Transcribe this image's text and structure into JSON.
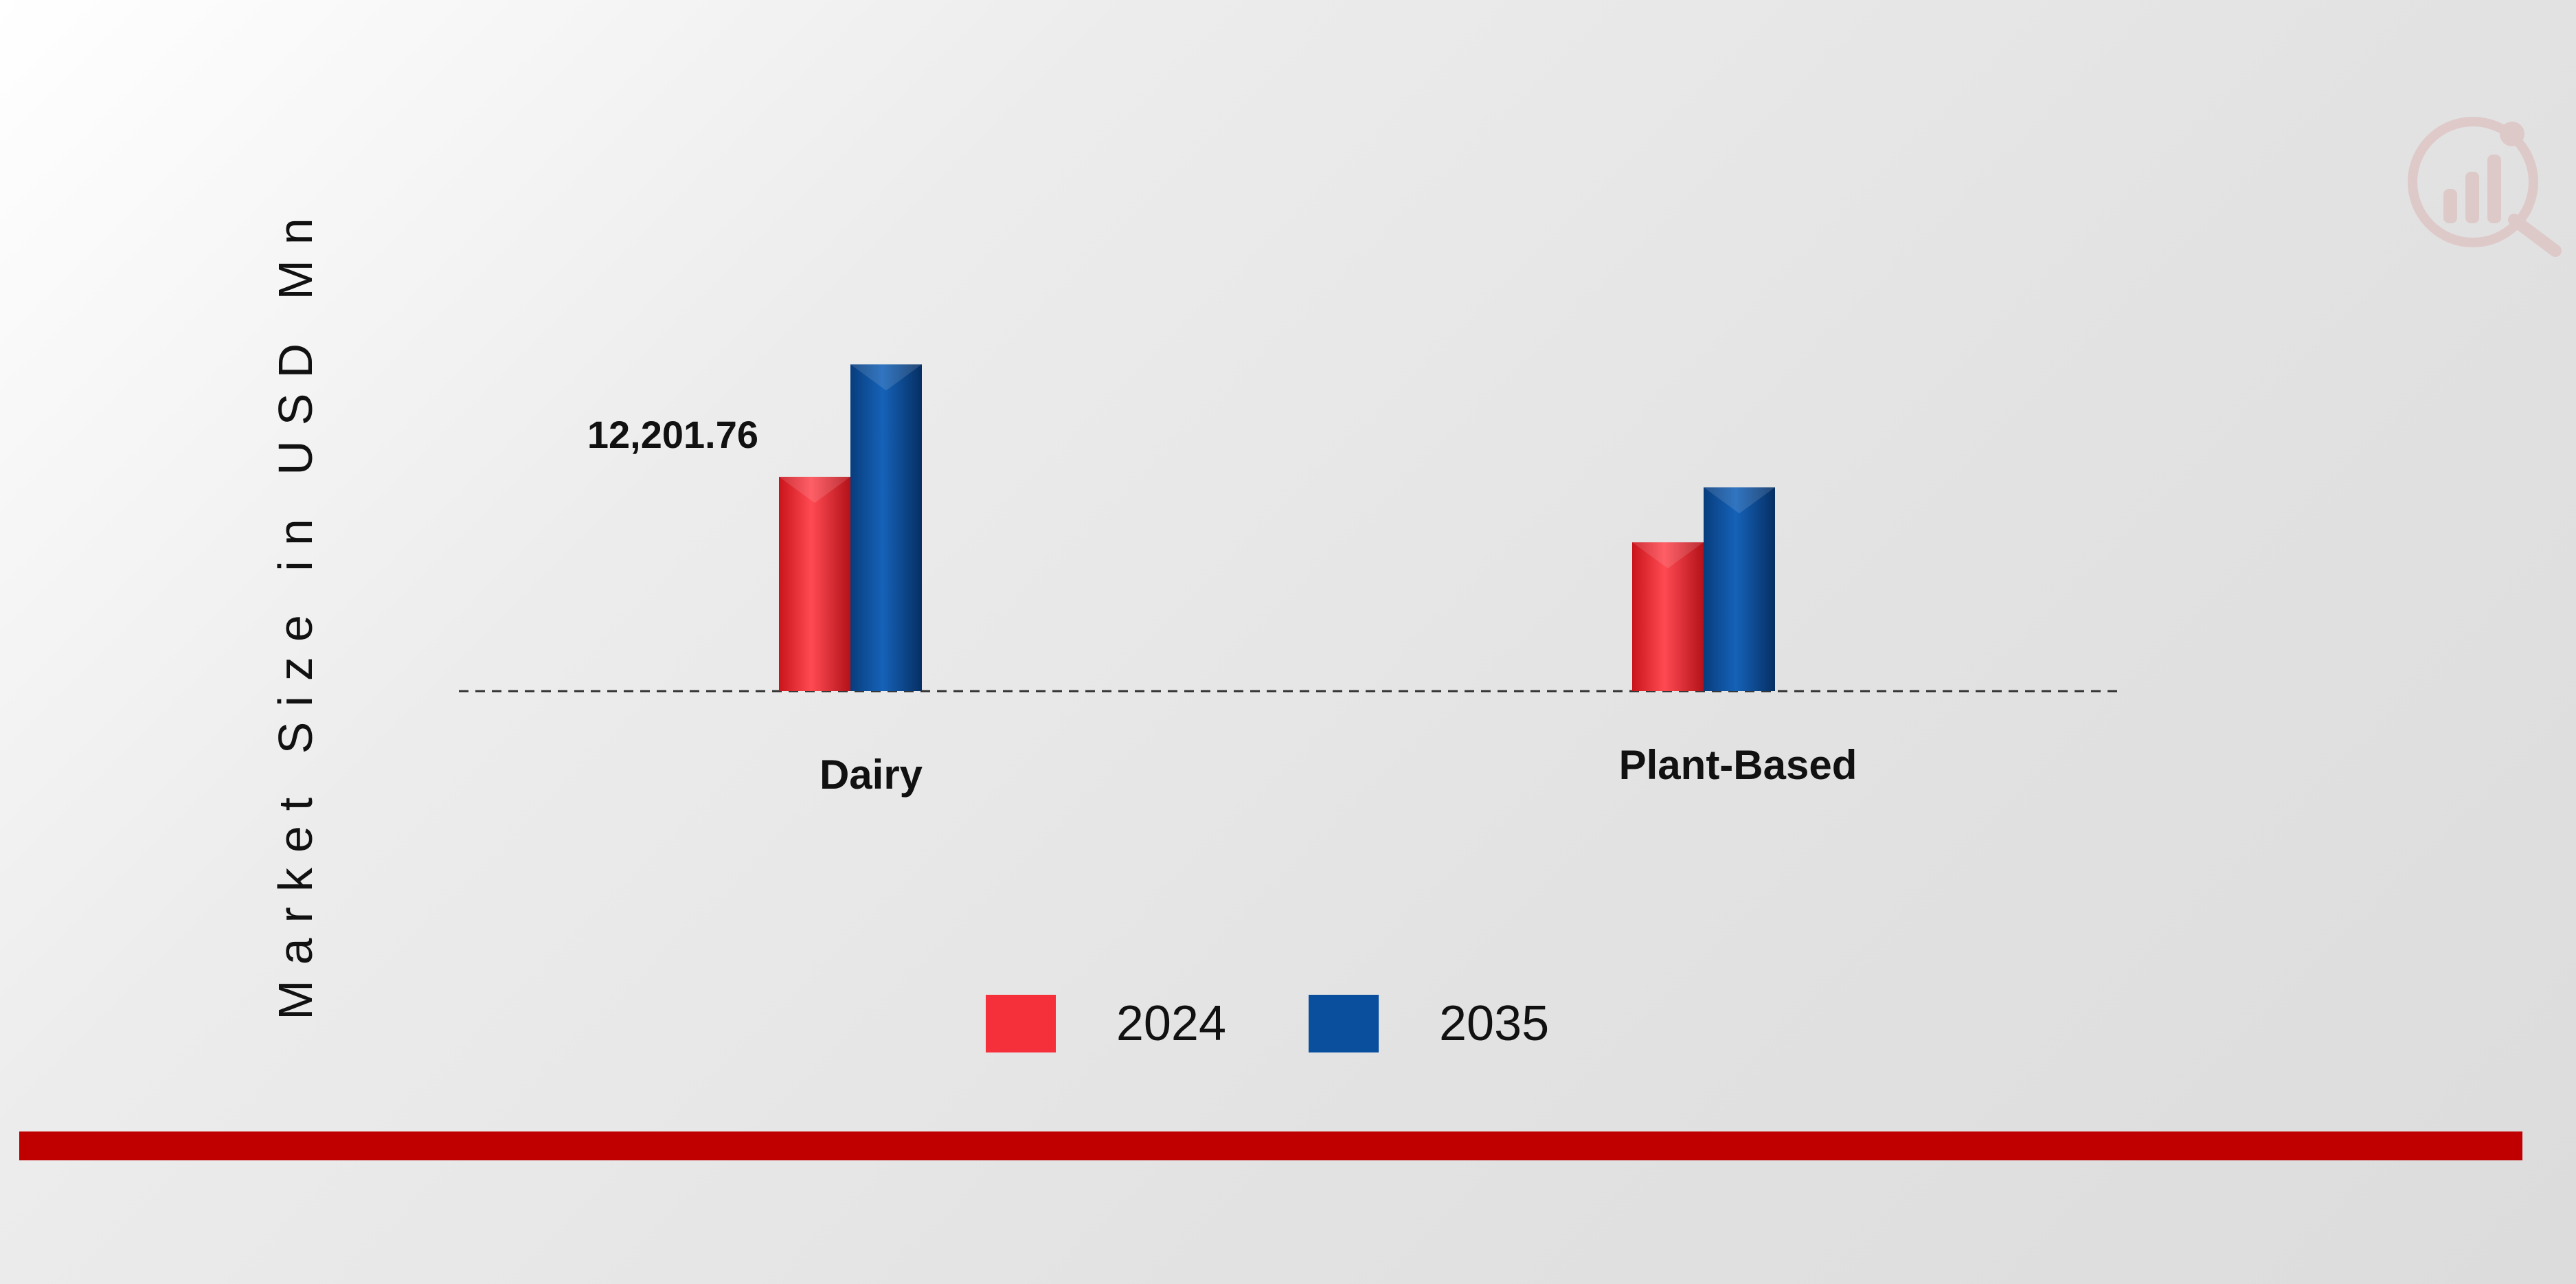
{
  "chart_data": {
    "type": "bar",
    "ylabel": "Market Size in USD Mn",
    "categories": [
      "Dairy",
      "Plant-Based"
    ],
    "series": [
      {
        "name": "2024",
        "color": "#f5303a",
        "values": [
          12201.76,
          8475
        ]
      },
      {
        "name": "2035",
        "color": "#0a4f9e",
        "values": [
          18600,
          11600
        ]
      }
    ],
    "data_labels": [
      {
        "series": 0,
        "category": 0,
        "text": "12,201.76"
      }
    ],
    "grid": false,
    "legend_position": "bottom-center"
  },
  "colors": {
    "accent_band": "#c00000",
    "baseline": "#333333"
  },
  "watermark_icon": "market-research-logo-icon"
}
